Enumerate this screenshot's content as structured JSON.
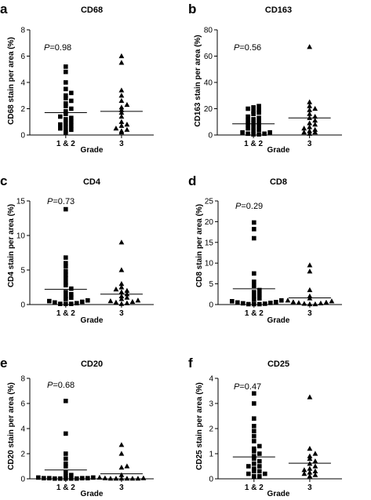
{
  "panels": [
    {
      "label": "a",
      "title": "CD68",
      "ylabel": "CD68 stain per area (%)",
      "xlabel": "Grade",
      "p_prefix": "P",
      "p_value": "=0.98"
    },
    {
      "label": "b",
      "title": "CD163",
      "ylabel": "CD163 stain per area (%)",
      "xlabel": "Grade",
      "p_prefix": "P",
      "p_value": "=0.56"
    },
    {
      "label": "c",
      "title": "CD4",
      "ylabel": "CD4 stain per area (%)",
      "xlabel": "Grade",
      "p_prefix": "P",
      "p_value": "=0.73"
    },
    {
      "label": "d",
      "title": "CD8",
      "ylabel": "CD8 stain per area (%)",
      "xlabel": "Grade",
      "p_prefix": "P",
      "p_value": "=0.29"
    },
    {
      "label": "e",
      "title": "CD20",
      "ylabel": "CD20 stain per area (%)",
      "xlabel": "Grade",
      "p_prefix": "P",
      "p_value": "=0.68"
    },
    {
      "label": "f",
      "title": "CD25",
      "ylabel": "CD25 stain per area (%)",
      "xlabel": "Grade",
      "p_prefix": "P",
      "p_value": "=0.47"
    }
  ],
  "chart_data": [
    {
      "type": "scatter",
      "title": "CD68",
      "xlabel": "Grade",
      "ylabel": "CD68 stain per area (%)",
      "categories": [
        "1 & 2",
        "3"
      ],
      "ylim": [
        0,
        8
      ],
      "yticks": [
        0,
        2,
        4,
        6,
        8
      ],
      "grid": false,
      "markers": {
        "1 & 2": "square",
        "3": "triangle"
      },
      "groups": [
        {
          "category": "1 & 2",
          "mean": 1.7,
          "values": [
            5.2,
            4.8,
            4.0,
            3.5,
            3.2,
            3.0,
            2.8,
            2.6,
            2.4,
            2.2,
            2.0,
            1.8,
            1.6,
            1.4,
            1.3,
            1.2,
            1.0,
            0.9,
            0.8,
            0.7,
            0.6,
            0.5,
            0.4,
            0.3,
            0.2
          ]
        },
        {
          "category": "3",
          "mean": 1.8,
          "values": [
            6.0,
            5.5,
            3.4,
            3.0,
            2.6,
            2.3,
            2.1,
            1.9,
            1.7,
            1.4,
            1.0,
            0.8,
            0.7,
            0.5,
            0.4,
            0.3,
            0.2
          ]
        }
      ]
    },
    {
      "type": "scatter",
      "title": "CD163",
      "xlabel": "Grade",
      "ylabel": "CD163 stain per area (%)",
      "categories": [
        "1 & 2",
        "3"
      ],
      "ylim": [
        0,
        80
      ],
      "yticks": [
        0,
        20,
        40,
        60,
        80
      ],
      "grid": false,
      "markers": {
        "1 & 2": "square",
        "3": "triangle"
      },
      "groups": [
        {
          "category": "1 & 2",
          "mean": 8.5,
          "values": [
            22,
            21,
            20,
            19,
            18,
            17,
            16,
            14,
            13,
            12,
            11,
            10,
            9,
            8,
            7,
            6,
            5,
            4,
            3,
            2,
            2,
            1,
            1,
            0.5,
            0.5
          ]
        },
        {
          "category": "3",
          "mean": 13,
          "values": [
            67,
            25,
            22,
            20,
            19,
            16,
            14,
            13,
            11,
            9,
            8,
            6,
            5,
            4,
            3,
            2,
            2,
            1
          ]
        }
      ]
    },
    {
      "type": "scatter",
      "title": "CD4",
      "xlabel": "Grade",
      "ylabel": "CD4 stain per area (%)",
      "categories": [
        "1 & 2",
        "3"
      ],
      "ylim": [
        0,
        15
      ],
      "yticks": [
        0,
        5,
        10,
        15
      ],
      "grid": false,
      "markers": {
        "1 & 2": "square",
        "3": "triangle"
      },
      "groups": [
        {
          "category": "1 & 2",
          "mean": 2.2,
          "values": [
            13.8,
            6.8,
            6.0,
            5.5,
            4.8,
            4.3,
            3.8,
            3.2,
            2.8,
            2.3,
            1.8,
            1.5,
            1.2,
            1.0,
            0.8,
            0.6,
            0.5,
            0.4,
            0.3,
            0.2,
            0.1,
            0.1,
            0.1
          ]
        },
        {
          "category": "3",
          "mean": 1.5,
          "values": [
            9.0,
            5.0,
            3.0,
            2.5,
            2.2,
            2.0,
            1.8,
            1.5,
            1.2,
            1.0,
            0.8,
            0.6,
            0.5,
            0.4,
            0.3,
            0.2,
            0.1
          ]
        }
      ]
    },
    {
      "type": "scatter",
      "title": "CD8",
      "xlabel": "Grade",
      "ylabel": "CD8 stain per area (%)",
      "categories": [
        "1 & 2",
        "3"
      ],
      "ylim": [
        0,
        25
      ],
      "yticks": [
        0,
        5,
        10,
        15,
        20,
        25
      ],
      "grid": false,
      "markers": {
        "1 & 2": "square",
        "3": "triangle"
      },
      "groups": [
        {
          "category": "1 & 2",
          "mean": 3.8,
          "values": [
            19.8,
            18.2,
            16.0,
            7.5,
            5.5,
            4.5,
            3.5,
            3.0,
            2.5,
            2.0,
            1.5,
            1.2,
            1.0,
            0.8,
            0.6,
            0.5,
            0.4,
            0.3,
            0.2,
            0.1,
            0.1,
            0.1
          ]
        },
        {
          "category": "3",
          "mean": 1.6,
          "values": [
            9.5,
            8.0,
            3.5,
            2.0,
            1.5,
            1.0,
            0.8,
            0.6,
            0.5,
            0.4,
            0.3,
            0.2,
            0.1,
            0.1
          ]
        }
      ]
    },
    {
      "type": "scatter",
      "title": "CD20",
      "xlabel": "Grade",
      "ylabel": "CD20 stain per area (%)",
      "categories": [
        "1 & 2",
        "3"
      ],
      "ylim": [
        0,
        8
      ],
      "yticks": [
        0,
        2,
        4,
        6,
        8
      ],
      "grid": false,
      "markers": {
        "1 & 2": "square",
        "3": "triangle"
      },
      "groups": [
        {
          "category": "1 & 2",
          "mean": 0.7,
          "values": [
            6.2,
            3.6,
            2.0,
            1.6,
            1.2,
            1.0,
            0.5,
            0.3,
            0.2,
            0.1,
            0.1,
            0.05,
            0.05,
            0.05,
            0.05,
            0.02,
            0.02,
            0.02,
            0.02,
            0.02
          ]
        },
        {
          "category": "3",
          "mean": 0.4,
          "values": [
            2.7,
            2.0,
            1.0,
            0.9,
            0.3,
            0.1,
            0.05,
            0.05,
            0.02,
            0.02,
            0.02,
            0.02,
            0.02,
            0.02
          ]
        }
      ]
    },
    {
      "type": "scatter",
      "title": "CD25",
      "xlabel": "Grade",
      "ylabel": "CD25 stain per area (%)",
      "categories": [
        "1 & 2",
        "3"
      ],
      "ylim": [
        0,
        4
      ],
      "yticks": [
        0,
        1,
        2,
        3,
        4
      ],
      "grid": false,
      "markers": {
        "1 & 2": "square",
        "3": "triangle"
      },
      "groups": [
        {
          "category": "1 & 2",
          "mean": 0.87,
          "values": [
            3.4,
            3.0,
            2.4,
            2.1,
            1.9,
            1.7,
            1.5,
            1.3,
            1.2,
            1.1,
            1.0,
            0.9,
            0.8,
            0.7,
            0.6,
            0.5,
            0.5,
            0.4,
            0.3,
            0.3,
            0.2,
            0.2,
            0.1,
            0.1
          ]
        },
        {
          "category": "3",
          "mean": 0.62,
          "values": [
            3.25,
            1.2,
            1.0,
            0.9,
            0.8,
            0.7,
            0.6,
            0.5,
            0.4,
            0.35,
            0.3,
            0.25,
            0.2,
            0.15,
            0.1
          ]
        }
      ]
    }
  ]
}
